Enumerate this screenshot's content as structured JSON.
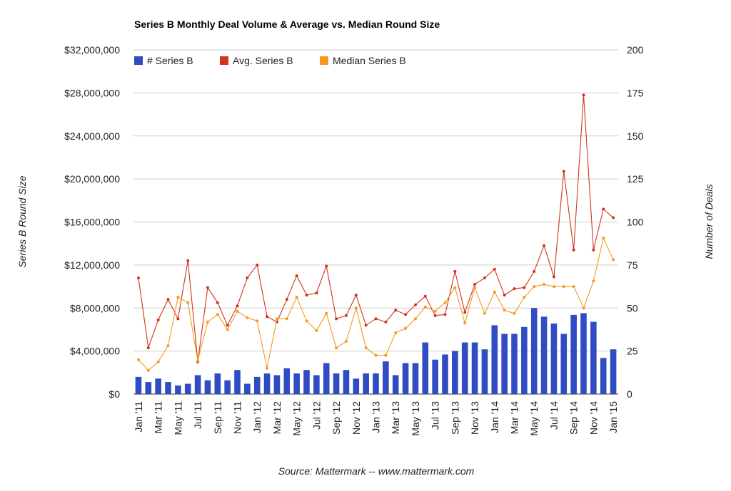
{
  "chart_data": {
    "type": "bar+line",
    "title": "Series B Monthly Deal Volume & Average vs. Median Round Size",
    "source": "Source: Mattermark -- www.mattermark.com",
    "ylabel_left": "Series B Round Size",
    "ylabel_right": "Number of Deals",
    "ylim_left": [
      0,
      32000000
    ],
    "ylim_right": [
      0,
      200
    ],
    "yticks_left": [
      "$0",
      "$4,000,000",
      "$8,000,000",
      "$12,000,000",
      "$16,000,000",
      "$20,000,000",
      "$24,000,000",
      "$28,000,000",
      "$32,000,000"
    ],
    "yticks_right": [
      "0",
      "25",
      "50",
      "75",
      "100",
      "125",
      "150",
      "175",
      "200"
    ],
    "grid": true,
    "legend_position": "top-left",
    "colors": {
      "bars": "#2f4cc2",
      "avg": "#d0341a",
      "median": "#f59a1f",
      "grid": "#cccccc"
    },
    "x": [
      "Jan '11",
      "Feb '11",
      "Mar '11",
      "Apr '11",
      "May '11",
      "Jun '11",
      "Jul '11",
      "Aug '11",
      "Sep '11",
      "Oct '11",
      "Nov '11",
      "Dec '11",
      "Jan '12",
      "Feb '12",
      "Mar '12",
      "Apr '12",
      "May '12",
      "Jun '12",
      "Jul '12",
      "Aug '12",
      "Sep '12",
      "Oct '12",
      "Nov '12",
      "Dec '12",
      "Jan '13",
      "Feb '13",
      "Mar '13",
      "Apr '13",
      "May '13",
      "Jun '13",
      "Jul '13",
      "Aug '13",
      "Sep '13",
      "Oct '13",
      "Nov '13",
      "Dec '13",
      "Jan '14",
      "Feb '14",
      "Mar '14",
      "Apr '14",
      "May '14",
      "Jun '14",
      "Jul '14",
      "Aug '14",
      "Sep '14",
      "Oct '14",
      "Nov '14",
      "Dec '14",
      "Jan '15"
    ],
    "x_tick_labels": [
      "Jan '11",
      "Mar '11",
      "May '11",
      "Jul '11",
      "Sep '11",
      "Nov '11",
      "Jan '12",
      "Mar '12",
      "May '12",
      "Jul '12",
      "Sep '12",
      "Nov '12",
      "Jan '13",
      "Mar '13",
      "May '13",
      "Jul '13",
      "Sep '13",
      "Nov '13",
      "Jan '14",
      "Mar '14",
      "May '14",
      "Jul '14",
      "Sep '14",
      "Nov '14",
      "Jan '15"
    ],
    "series": [
      {
        "name": "# Series B",
        "type": "bar",
        "axis": "right",
        "values": [
          10,
          7,
          9,
          7,
          5,
          6,
          11,
          8,
          12,
          8,
          14,
          6,
          10,
          12,
          11,
          15,
          12,
          14,
          11,
          18,
          12,
          14,
          9,
          12,
          12,
          19,
          11,
          18,
          18,
          30,
          20,
          23,
          25,
          30,
          30,
          26,
          40,
          35,
          35,
          39,
          50,
          45,
          41,
          35,
          46,
          47,
          42,
          21,
          26
        ]
      },
      {
        "name": "Avg. Series B",
        "type": "line",
        "axis": "left",
        "values": [
          10800000,
          4300000,
          6900000,
          8800000,
          7000000,
          12400000,
          3000000,
          9900000,
          8500000,
          6400000,
          8200000,
          10800000,
          12000000,
          7200000,
          6700000,
          8800000,
          11000000,
          9200000,
          9400000,
          11900000,
          7000000,
          7300000,
          9200000,
          6400000,
          7000000,
          6700000,
          7800000,
          7400000,
          8300000,
          9100000,
          7300000,
          7400000,
          11400000,
          7600000,
          10200000,
          10800000,
          11600000,
          9200000,
          9800000,
          9900000,
          11400000,
          13800000,
          10900000,
          20700000,
          13400000,
          27800000,
          13400000,
          17200000,
          16400000
        ]
      },
      {
        "name": "Median Series B",
        "type": "line",
        "axis": "left",
        "values": [
          3200000,
          2200000,
          3000000,
          4500000,
          9000000,
          8500000,
          3100000,
          6700000,
          7400000,
          6000000,
          7700000,
          7100000,
          6800000,
          2400000,
          7000000,
          7000000,
          9000000,
          6800000,
          5900000,
          7500000,
          4300000,
          4900000,
          8000000,
          4300000,
          3600000,
          3600000,
          5700000,
          6100000,
          7000000,
          8100000,
          7700000,
          8500000,
          9900000,
          6600000,
          9900000,
          7500000,
          9500000,
          7800000,
          7500000,
          9000000,
          10000000,
          10200000,
          10000000,
          10000000,
          10000000,
          8000000,
          10500000,
          14500000,
          12500000
        ]
      }
    ]
  }
}
